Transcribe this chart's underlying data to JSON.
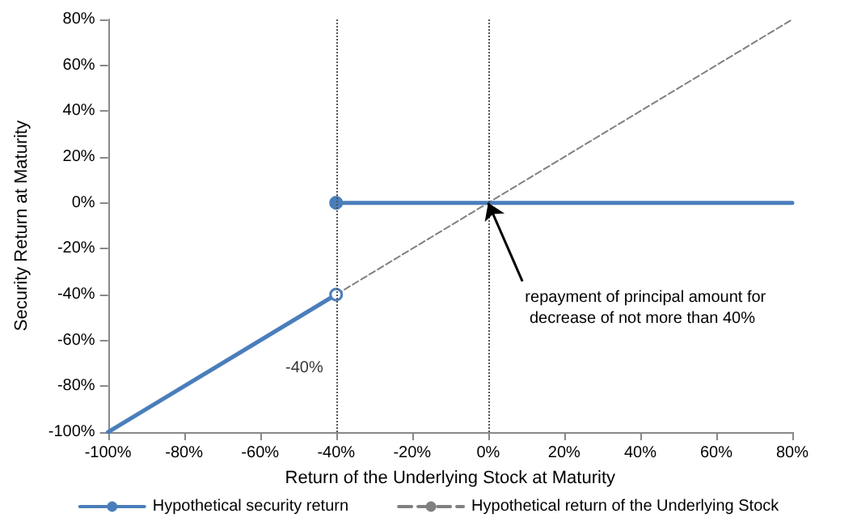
{
  "chart_data": {
    "type": "line",
    "xlabel": "Return of the Underlying Stock at Maturity",
    "ylabel": "Security Return at Maturity",
    "xlim": [
      -100,
      80
    ],
    "ylim": [
      -100,
      80
    ],
    "xticks": [
      {
        "value": -100,
        "label": "-100%"
      },
      {
        "value": -80,
        "label": "-80%"
      },
      {
        "value": -60,
        "label": "-60%"
      },
      {
        "value": -40,
        "label": "-40%"
      },
      {
        "value": -20,
        "label": "-20%"
      },
      {
        "value": 0,
        "label": "0%"
      },
      {
        "value": 20,
        "label": "20%"
      },
      {
        "value": 40,
        "label": "40%"
      },
      {
        "value": 60,
        "label": "60%"
      },
      {
        "value": 80,
        "label": "80%"
      }
    ],
    "yticks": [
      {
        "value": -100,
        "label": "-100%"
      },
      {
        "value": -80,
        "label": "-80%"
      },
      {
        "value": -60,
        "label": "-60%"
      },
      {
        "value": -40,
        "label": "-40%"
      },
      {
        "value": -20,
        "label": "-20%"
      },
      {
        "value": 0,
        "label": "0%"
      },
      {
        "value": 20,
        "label": "20%"
      },
      {
        "value": 40,
        "label": "40%"
      },
      {
        "value": 60,
        "label": "60%"
      },
      {
        "value": 80,
        "label": "80%"
      }
    ],
    "series": [
      {
        "name": "Hypothetical security return",
        "color": "#4a7ebb",
        "x": [
          -100,
          -40,
          null,
          -40,
          80
        ],
        "values": [
          -100,
          -40,
          null,
          0,
          0
        ],
        "marker": "circle",
        "line_style": "solid"
      },
      {
        "name": "Hypothetical return of the Underlying Stock",
        "color": "#808080",
        "x": [
          -40,
          80
        ],
        "values": [
          -40,
          80
        ],
        "marker": "none",
        "line_style": "dashed"
      }
    ],
    "ref_lines": [
      {
        "axis": "x",
        "value": -40,
        "color": "#555555",
        "line_style": "dotted"
      },
      {
        "axis": "x",
        "value": 0,
        "color": "#555555",
        "line_style": "dotted"
      }
    ],
    "annotations": [
      {
        "text": "-40%",
        "x": -40,
        "y": -72
      },
      {
        "text": "repayment of principal amount for decrease of not more than 40%",
        "x": 0,
        "y": 0
      }
    ],
    "grid": false,
    "legend": "bottom"
  }
}
